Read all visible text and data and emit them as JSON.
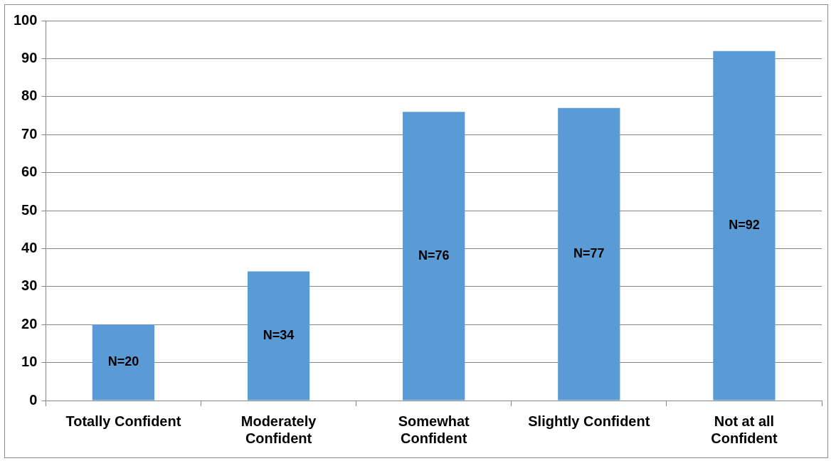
{
  "chart_data": {
    "type": "bar",
    "categories": [
      "Totally Confident",
      "Moderately Confident",
      "Somewhat Confident",
      "Slightly Confident",
      "Not at all Confident"
    ],
    "values": [
      20,
      34,
      76,
      77,
      92
    ],
    "value_labels": [
      "N=20",
      "N=34",
      "N=76",
      "N=77",
      "N=92"
    ],
    "color": "#5b9bd5",
    "ylim": [
      0,
      100
    ],
    "yticks": [
      0,
      10,
      20,
      30,
      40,
      50,
      60,
      70,
      80,
      90,
      100
    ],
    "grid": "y",
    "legend": false
  }
}
